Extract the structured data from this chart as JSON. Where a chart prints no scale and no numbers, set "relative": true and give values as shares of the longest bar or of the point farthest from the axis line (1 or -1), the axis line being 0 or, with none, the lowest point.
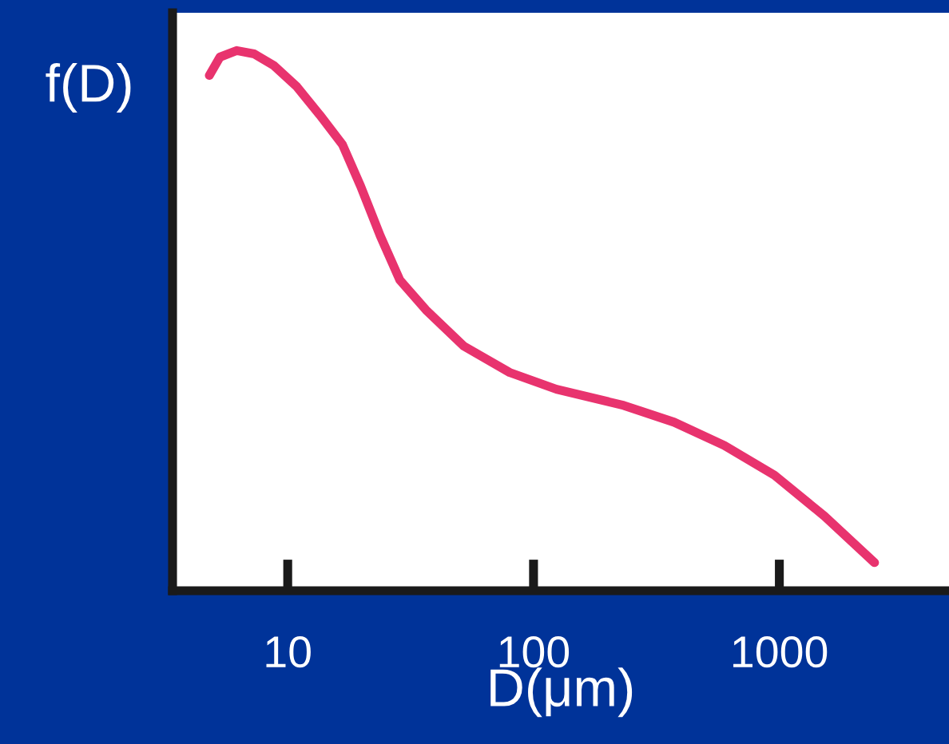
{
  "chart_data": {
    "type": "line",
    "xlabel": "D(μm)",
    "ylabel": "f(D)",
    "relative": true,
    "log": "x",
    "xlim": [
      3.4,
      4900
    ],
    "xticks": [
      10,
      100,
      1000
    ],
    "x": [
      4.8,
      5.3,
      6.2,
      7.3,
      8.8,
      10.9,
      13.5,
      16.7,
      19.8,
      23.8,
      28.6,
      36.5,
      52,
      80,
      124,
      233,
      373,
      597,
      955,
      1527,
      2440
    ],
    "series": [
      {
        "color": "#e8336e",
        "values": [
          0.954,
          0.988,
          1.0,
          0.994,
          0.972,
          0.933,
          0.881,
          0.826,
          0.749,
          0.657,
          0.575,
          0.52,
          0.453,
          0.404,
          0.373,
          0.343,
          0.312,
          0.269,
          0.214,
          0.138,
          0.052
        ]
      }
    ]
  }
}
